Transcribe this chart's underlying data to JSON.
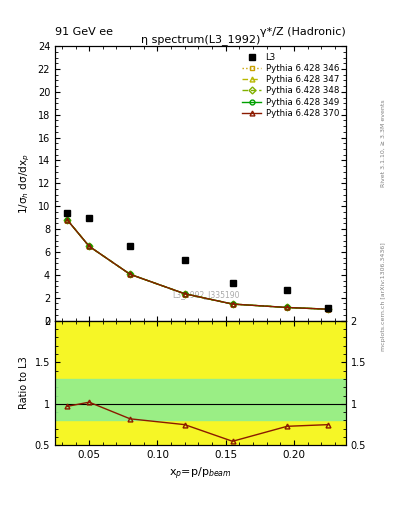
{
  "title_left": "91 GeV ee",
  "title_right": "γ*/Z (Hadronic)",
  "plot_title": "η spectrum(L3_1992)",
  "xlabel": "x$_p$=p/p$_{beam}$",
  "ylabel_main": "1/σ$_h$ dσ/dx$_p$",
  "ylabel_ratio": "Ratio to L3",
  "right_label_top": "Rivet 3.1.10, ≥ 3.3M events",
  "right_label_bottom": "mcplots.cern.ch [arXiv:1306.3436]",
  "watermark": "L3_1992_I335190",
  "L3_x": [
    0.034,
    0.05,
    0.08,
    0.12,
    0.155,
    0.195,
    0.225
  ],
  "L3_y": [
    9.4,
    9.0,
    6.5,
    5.3,
    3.3,
    2.7,
    1.1
  ],
  "py_x": [
    0.034,
    0.05,
    0.08,
    0.12,
    0.155,
    0.195,
    0.225
  ],
  "py_346_y": [
    8.8,
    6.5,
    4.05,
    2.35,
    1.45,
    1.15,
    1.0
  ],
  "py_347_y": [
    8.8,
    6.5,
    4.05,
    2.35,
    1.45,
    1.15,
    1.0
  ],
  "py_348_y": [
    8.8,
    6.5,
    4.05,
    2.35,
    1.45,
    1.15,
    1.0
  ],
  "py_349_y": [
    8.8,
    6.5,
    4.05,
    2.35,
    1.45,
    1.15,
    1.0
  ],
  "py_370_y": [
    8.8,
    6.5,
    4.05,
    2.35,
    1.45,
    1.15,
    1.0
  ],
  "ratio_x": [
    0.034,
    0.05,
    0.08,
    0.12,
    0.155,
    0.195,
    0.225
  ],
  "ratio_370_y": [
    0.97,
    1.02,
    0.82,
    0.75,
    0.55,
    0.73,
    0.75
  ],
  "color_346": "#c8a000",
  "color_347": "#b8b800",
  "color_348": "#80b000",
  "color_349": "#00a000",
  "color_370": "#8b1a00",
  "band_yellow_lo": 0.5,
  "band_yellow_hi": 2.0,
  "band_green_lo": 0.8,
  "band_green_hi": 1.3,
  "ylim_main": [
    0,
    24
  ],
  "ylim_ratio": [
    0.5,
    2.0
  ],
  "xlim": [
    0.025,
    0.238
  ],
  "yticks_main": [
    0,
    2,
    4,
    6,
    8,
    10,
    12,
    14,
    16,
    18,
    20,
    22,
    24
  ],
  "yticks_ratio": [
    0.5,
    1.0,
    1.5,
    2.0
  ],
  "xticks": [
    0.05,
    0.1,
    0.15,
    0.2
  ]
}
